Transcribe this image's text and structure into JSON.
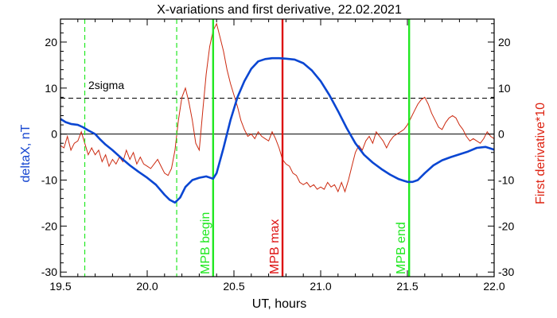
{
  "chart_data": {
    "type": "line",
    "title": "X-variations and first derivative, 22.02.2021",
    "xlabel": "UT, hours",
    "ylabel_left": "deltaX, nT",
    "ylabel_right": "First derivative*10",
    "xlim": [
      19.5,
      22.0
    ],
    "ylim": [
      -31,
      25
    ],
    "x_ticks": [
      19.5,
      20.0,
      20.5,
      21.0,
      21.5,
      22.0
    ],
    "x_tick_labels": [
      "19.5",
      "20.0",
      "20.5",
      "21.0",
      "21.5",
      "22.0"
    ],
    "y_ticks": [
      -30,
      -20,
      -10,
      0,
      10,
      20
    ],
    "y_tick_labels": [
      "-30",
      "-20",
      "-10",
      "0",
      "10",
      "20"
    ],
    "colors": {
      "deltax": "#0a46d2",
      "derivative": "#cc2a10",
      "mpb_boundary": "#22e822",
      "mpb_max": "#dd1111"
    },
    "series": [
      {
        "name": "deltaX, nT",
        "color": "#0a46d2",
        "x": [
          19.5,
          19.53,
          19.56,
          19.6,
          19.63,
          19.66,
          19.7,
          19.73,
          19.76,
          19.8,
          19.85,
          19.9,
          19.95,
          20.0,
          20.05,
          20.1,
          20.13,
          20.16,
          20.19,
          20.22,
          20.26,
          20.3,
          20.34,
          20.38,
          20.4,
          20.44,
          20.48,
          20.52,
          20.56,
          20.6,
          20.64,
          20.68,
          20.72,
          20.76,
          20.8,
          20.85,
          20.9,
          20.95,
          21.0,
          21.05,
          21.1,
          21.15,
          21.2,
          21.25,
          21.3,
          21.35,
          21.4,
          21.45,
          21.5,
          21.53,
          21.56,
          21.6,
          21.65,
          21.7,
          21.75,
          21.8,
          21.85,
          21.9,
          21.95,
          22.0
        ],
        "y": [
          3.3,
          2.6,
          2.2,
          2.0,
          1.5,
          0.8,
          0.0,
          -1.2,
          -2.3,
          -3.5,
          -5.2,
          -6.8,
          -8.2,
          -9.5,
          -11.0,
          -13.2,
          -14.3,
          -14.9,
          -13.8,
          -11.5,
          -10.0,
          -9.5,
          -9.2,
          -9.7,
          -8.5,
          -3.0,
          3.0,
          8.0,
          11.5,
          14.2,
          15.8,
          16.3,
          16.5,
          16.5,
          16.4,
          16.2,
          15.4,
          13.8,
          11.5,
          8.5,
          5.0,
          1.3,
          -2.0,
          -4.5,
          -6.2,
          -7.6,
          -8.8,
          -9.8,
          -10.4,
          -10.4,
          -10.0,
          -8.5,
          -6.8,
          -5.7,
          -5.0,
          -4.4,
          -3.8,
          -3.0,
          -2.8,
          -3.4
        ]
      },
      {
        "name": "First derivative*10",
        "color": "#cc2a10",
        "x": [
          19.5,
          19.52,
          19.54,
          19.56,
          19.58,
          19.6,
          19.62,
          19.64,
          19.66,
          19.68,
          19.7,
          19.72,
          19.74,
          19.76,
          19.78,
          19.8,
          19.82,
          19.84,
          19.86,
          19.88,
          19.9,
          19.92,
          19.94,
          19.96,
          19.98,
          20.0,
          20.02,
          20.04,
          20.06,
          20.08,
          20.1,
          20.12,
          20.14,
          20.16,
          20.18,
          20.2,
          20.22,
          20.24,
          20.26,
          20.28,
          20.3,
          20.32,
          20.34,
          20.36,
          20.38,
          20.4,
          20.42,
          20.44,
          20.46,
          20.48,
          20.5,
          20.52,
          20.54,
          20.56,
          20.58,
          20.6,
          20.62,
          20.64,
          20.66,
          20.68,
          20.7,
          20.72,
          20.74,
          20.76,
          20.78,
          20.8,
          20.82,
          20.84,
          20.86,
          20.88,
          20.9,
          20.92,
          20.94,
          20.96,
          20.98,
          21.0,
          21.02,
          21.04,
          21.06,
          21.08,
          21.1,
          21.12,
          21.14,
          21.16,
          21.18,
          21.2,
          21.22,
          21.24,
          21.26,
          21.28,
          21.3,
          21.32,
          21.34,
          21.36,
          21.38,
          21.4,
          21.42,
          21.44,
          21.46,
          21.48,
          21.5,
          21.52,
          21.54,
          21.56,
          21.58,
          21.6,
          21.62,
          21.64,
          21.66,
          21.68,
          21.7,
          21.72,
          21.74,
          21.76,
          21.78,
          21.8,
          21.82,
          21.84,
          21.86,
          21.88,
          21.9,
          21.92,
          21.94,
          21.96,
          21.98,
          22.0
        ],
        "y": [
          -2.5,
          -3.0,
          -0.5,
          -3.5,
          -2.0,
          -1.5,
          0.5,
          -2.0,
          -4.5,
          -3.0,
          -4.5,
          -3.5,
          -6.0,
          -4.5,
          -7.0,
          -5.5,
          -6.5,
          -5.0,
          -6.0,
          -3.5,
          -5.5,
          -4.0,
          -6.5,
          -5.0,
          -6.5,
          -7.0,
          -7.5,
          -6.5,
          -5.5,
          -7.0,
          -8.5,
          -9.0,
          -7.5,
          -3.5,
          3.0,
          8.0,
          10.0,
          7.0,
          3.0,
          -2.0,
          -3.5,
          5.0,
          13.0,
          19.0,
          22.5,
          24.0,
          21.0,
          18.0,
          14.0,
          11.0,
          8.5,
          6.0,
          3.0,
          1.0,
          -0.5,
          0.0,
          -1.0,
          0.5,
          -0.5,
          -1.0,
          -1.5,
          0.5,
          -1.0,
          -3.0,
          -5.5,
          -6.5,
          -7.0,
          -8.5,
          -9.0,
          -10.5,
          -11.0,
          -10.5,
          -11.5,
          -11.0,
          -12.0,
          -11.5,
          -12.0,
          -10.5,
          -11.5,
          -11.0,
          -12.5,
          -10.5,
          -12.5,
          -10.0,
          -7.0,
          -4.0,
          -2.5,
          -3.5,
          -1.5,
          -0.5,
          -2.0,
          0.5,
          -0.5,
          -1.5,
          -3.0,
          -1.5,
          -0.5,
          0.0,
          0.5,
          1.0,
          2.0,
          3.5,
          5.0,
          6.5,
          7.5,
          8.0,
          6.5,
          4.5,
          3.0,
          1.5,
          1.0,
          2.5,
          3.5,
          4.0,
          3.5,
          2.0,
          1.0,
          -0.5,
          -1.5,
          -1.0,
          -1.5,
          -2.0,
          -1.0,
          0.5,
          -0.5,
          -1.0
        ]
      }
    ],
    "reference_lines": {
      "zero": {
        "y": 0
      },
      "two_sigma": {
        "y": 7.8,
        "label": "2sigma"
      }
    },
    "vertical_lines": [
      {
        "x": 19.64,
        "style": "dashed",
        "color": "#22e822",
        "label": ""
      },
      {
        "x": 20.17,
        "style": "dashed",
        "color": "#22e822",
        "label": ""
      },
      {
        "x": 20.38,
        "style": "solid",
        "color": "#22e822",
        "label": "MPB begin"
      },
      {
        "x": 20.78,
        "style": "solid",
        "color": "#dd1111",
        "label": "MPB max"
      },
      {
        "x": 21.51,
        "style": "solid",
        "color": "#22e822",
        "label": "MPB end"
      }
    ]
  }
}
